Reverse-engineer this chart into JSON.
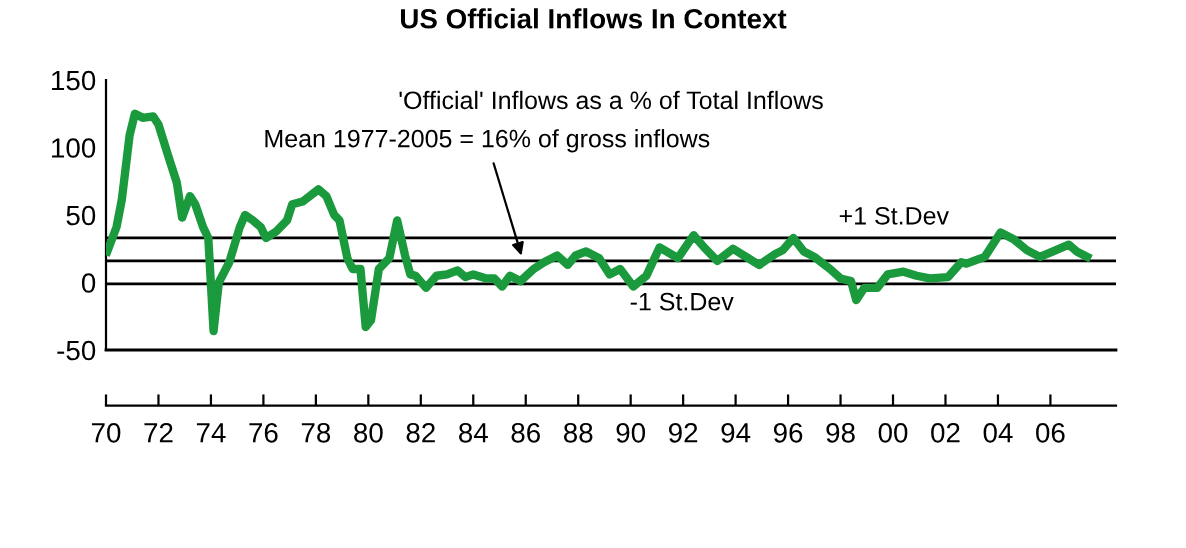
{
  "chart_data": {
    "type": "line",
    "title": "US Official Inflows In Context",
    "annotations": [
      "'Official' Inflows as a % of Total Inflows",
      {
        "text": "Mean 1977-2005 = 16% of gross inflows",
        "x": 1985.9,
        "y": 16
      }
    ],
    "xlim": [
      1970,
      2008.5
    ],
    "ylim": [
      -50,
      150
    ],
    "xticks": [
      {
        "value": 1970,
        "label": "70"
      },
      {
        "value": 1972,
        "label": "72"
      },
      {
        "value": 1974,
        "label": "74"
      },
      {
        "value": 1976,
        "label": "76"
      },
      {
        "value": 1978,
        "label": "78"
      },
      {
        "value": 1980,
        "label": "80"
      },
      {
        "value": 1982,
        "label": "82"
      },
      {
        "value": 1984,
        "label": "84"
      },
      {
        "value": 1986,
        "label": "86"
      },
      {
        "value": 1988,
        "label": "88"
      },
      {
        "value": 1990,
        "label": "90"
      },
      {
        "value": 1992,
        "label": "92"
      },
      {
        "value": 1994,
        "label": "94"
      },
      {
        "value": 1996,
        "label": "96"
      },
      {
        "value": 1998,
        "label": "98"
      },
      {
        "value": 2000,
        "label": "00"
      },
      {
        "value": 2002,
        "label": "02"
      },
      {
        "value": 2004,
        "label": "04"
      },
      {
        "value": 2006,
        "label": "06"
      }
    ],
    "yticks": [
      -50,
      0,
      50,
      100,
      150
    ],
    "grid": false,
    "legend": false,
    "marker": "none",
    "line_style": "solid",
    "ref_lines": [
      {
        "axis": "y",
        "value": 33,
        "label": "+1 St.Dev",
        "color": "#000000"
      },
      {
        "axis": "y",
        "value": 16,
        "label": null,
        "color": "#000000"
      },
      {
        "axis": "y",
        "value": -1,
        "label": "-1 St.Dev",
        "color": "#000000"
      }
    ],
    "x": [
      1970.05,
      1970.4,
      1970.6,
      1970.9,
      1971.1,
      1971.4,
      1971.8,
      1972.0,
      1972.4,
      1972.7,
      1972.9,
      1973.2,
      1973.4,
      1973.7,
      1973.9,
      1974.1,
      1974.3,
      1974.7,
      1975.1,
      1975.3,
      1975.6,
      1975.9,
      1976.1,
      1976.5,
      1976.9,
      1977.1,
      1977.5,
      1977.9,
      1978.1,
      1978.4,
      1978.7,
      1978.9,
      1979.2,
      1979.4,
      1979.7,
      1979.9,
      1980.1,
      1980.4,
      1980.8,
      1981.1,
      1981.4,
      1981.6,
      1981.8,
      1982.2,
      1982.6,
      1983.0,
      1983.4,
      1983.7,
      1984.0,
      1984.5,
      1984.8,
      1985.1,
      1985.4,
      1985.8,
      1986.3,
      1986.7,
      1987.2,
      1987.6,
      1987.9,
      1988.3,
      1988.8,
      1989.2,
      1989.6,
      1990.1,
      1990.6,
      1991.1,
      1991.8,
      1992.4,
      1992.8,
      1993.3,
      1993.9,
      1994.4,
      1994.9,
      1995.5,
      1995.8,
      1996.2,
      1996.6,
      1997.0,
      1997.6,
      1998.0,
      1998.4,
      1998.6,
      1998.9,
      1999.4,
      1999.8,
      2000.4,
      2000.9,
      2001.4,
      2002.1,
      2002.6,
      2002.8,
      2003.5,
      2004.1,
      2004.6,
      2005.1,
      2005.6,
      2006.1,
      2006.7,
      2007.0,
      2007.4
    ],
    "series": [
      {
        "color": "#1a9a3c",
        "values": [
          23,
          41,
          61,
          109,
          125,
          122,
          123,
          117,
          92,
          74,
          48,
          64,
          58,
          41,
          33,
          -36,
          0,
          15,
          41,
          50,
          46,
          41,
          33,
          38,
          46,
          58,
          60,
          66,
          69,
          64,
          50,
          46,
          18,
          10,
          10,
          -33,
          -28,
          10,
          18,
          46,
          20,
          6,
          5,
          -4,
          5,
          6,
          9,
          4,
          6,
          3,
          3,
          -3,
          5,
          1,
          10,
          15,
          20,
          13,
          20,
          23,
          18,
          6,
          10,
          -3,
          5,
          26,
          18,
          35,
          26,
          16,
          25,
          19,
          13,
          21,
          24,
          33,
          23,
          19,
          10,
          3,
          1,
          -13,
          -4,
          -4,
          6,
          8,
          5,
          3,
          4,
          15,
          14,
          19,
          37,
          32,
          24,
          19,
          23,
          28,
          23,
          19
        ]
      }
    ]
  }
}
